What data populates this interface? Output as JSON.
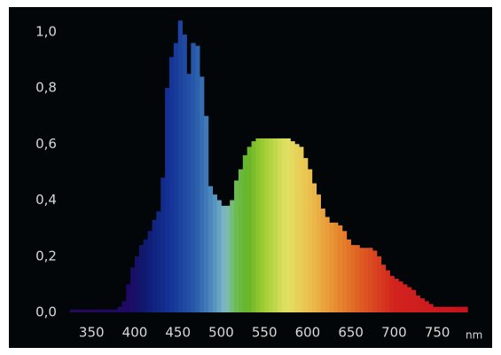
{
  "chart_data": {
    "type": "histogram",
    "x_label": "nm",
    "bins": [
      325,
      330,
      335,
      340,
      345,
      350,
      355,
      360,
      365,
      370,
      375,
      380,
      385,
      390,
      395,
      400,
      405,
      410,
      415,
      420,
      425,
      430,
      435,
      440,
      445,
      450,
      455,
      460,
      465,
      470,
      475,
      480,
      485,
      490,
      495,
      500,
      505,
      510,
      515,
      520,
      525,
      530,
      535,
      540,
      545,
      550,
      555,
      560,
      565,
      570,
      575,
      580,
      585,
      590,
      595,
      600,
      605,
      610,
      615,
      620,
      625,
      630,
      635,
      640,
      645,
      650,
      655,
      660,
      665,
      670,
      675,
      680,
      685,
      690,
      695,
      700,
      705,
      710,
      715,
      720,
      725,
      730,
      735,
      740,
      745,
      750,
      755,
      760,
      765,
      770,
      775,
      780,
      785
    ],
    "values": [
      0.01,
      0.01,
      0.01,
      0.01,
      0.01,
      0.01,
      0.01,
      0.01,
      0.01,
      0.01,
      0.01,
      0.02,
      0.04,
      0.1,
      0.16,
      0.2,
      0.24,
      0.26,
      0.29,
      0.33,
      0.36,
      0.48,
      0.8,
      0.91,
      0.96,
      1.04,
      0.99,
      0.85,
      0.96,
      0.95,
      0.84,
      0.7,
      0.45,
      0.42,
      0.4,
      0.38,
      0.38,
      0.4,
      0.47,
      0.51,
      0.56,
      0.59,
      0.61,
      0.62,
      0.62,
      0.62,
      0.62,
      0.62,
      0.62,
      0.62,
      0.62,
      0.61,
      0.6,
      0.59,
      0.55,
      0.51,
      0.46,
      0.42,
      0.37,
      0.34,
      0.32,
      0.32,
      0.31,
      0.29,
      0.26,
      0.24,
      0.24,
      0.23,
      0.23,
      0.23,
      0.22,
      0.2,
      0.17,
      0.15,
      0.13,
      0.12,
      0.11,
      0.1,
      0.09,
      0.08,
      0.06,
      0.05,
      0.04,
      0.03,
      0.02,
      0.02,
      0.02,
      0.02,
      0.02,
      0.02,
      0.02,
      0.02
    ],
    "xlim": [
      320,
      795
    ],
    "xticks": [
      350,
      400,
      450,
      500,
      550,
      600,
      650,
      700,
      750
    ],
    "ylim": [
      0,
      1.05
    ],
    "yticks": [
      {
        "value": 0,
        "label": "0,0"
      },
      {
        "value": 0.2,
        "label": "0,2"
      },
      {
        "value": 0.4,
        "label": "0,4"
      },
      {
        "value": 0.6,
        "label": "0,6"
      },
      {
        "value": 0.8,
        "label": "0,8"
      },
      {
        "value": 1,
        "label": "1,0"
      }
    ],
    "grid": false
  }
}
